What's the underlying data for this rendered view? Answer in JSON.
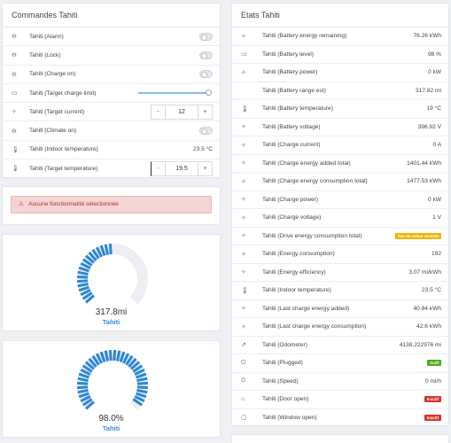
{
  "commands": {
    "title": "Commandes Tahiti",
    "rows": [
      {
        "icon": "toggle-icon",
        "label": "Tahiti (Alarm)",
        "type": "toggle"
      },
      {
        "icon": "toggle-icon",
        "label": "Tahiti (Lock)",
        "type": "toggle"
      },
      {
        "icon": "toggle-icon",
        "label": "Tahiti (Charge on)",
        "type": "toggle"
      },
      {
        "icon": "battery-icon",
        "label": "Tahiti (Target charge limit)",
        "type": "slider"
      },
      {
        "icon": "flash-icon",
        "label": "Tahiti (Target current)",
        "type": "stepper",
        "value": "12",
        "minus": "-",
        "plus": "+"
      },
      {
        "icon": "toggle-icon",
        "label": "Tahiti (Climate on)",
        "type": "toggle"
      },
      {
        "icon": "thermometer-icon",
        "label": "Tahiti (Indoor temperature)",
        "type": "value",
        "value": "23.5 °C"
      },
      {
        "icon": "thermometer-icon",
        "label": "Tahiti (Target temperature)",
        "type": "stepper",
        "value": "19.5",
        "minus": "-",
        "plus": "+"
      }
    ]
  },
  "alert": {
    "icon": "warning-icon",
    "text": "Aucune fonctionnalité sélectionnée"
  },
  "gauges": [
    {
      "value": "317.8mi",
      "name": "Tahiti",
      "fraction": 0.5
    },
    {
      "value": "98.0%",
      "name": "Tahiti",
      "fraction": 0.98
    }
  ],
  "states": {
    "title": "Etats Tahiti",
    "rows": [
      {
        "icon": "flash-icon",
        "label": "Tahiti (Battery energy remaining)",
        "value": "76.26 kWh"
      },
      {
        "icon": "battery-icon",
        "label": "Tahiti (Battery level)",
        "value": "98 %"
      },
      {
        "icon": "flash-icon",
        "label": "Tahiti (Battery power)",
        "value": "0 kW"
      },
      {
        "icon": "",
        "label": "Tahiti (Battery range est)",
        "value": "317.82 mi"
      },
      {
        "icon": "thermometer-icon",
        "label": "Tahiti (Battery temperature)",
        "value": "19 °C"
      },
      {
        "icon": "flash-icon",
        "label": "Tahiti (Battery voltage)",
        "value": "396.92 V"
      },
      {
        "icon": "flash-icon",
        "label": "Tahiti (Charge current)",
        "value": "0 A"
      },
      {
        "icon": "flash-icon",
        "label": "Tahiti (Charge energy added total)",
        "value": "1401.44 kWh"
      },
      {
        "icon": "flash-icon",
        "label": "Tahiti (Charge energy consumption total)",
        "value": "1477.53 kWh"
      },
      {
        "icon": "flash-icon",
        "label": "Tahiti (Charge power)",
        "value": "0 kW"
      },
      {
        "icon": "flash-icon",
        "label": "Tahiti (Charge voltage)",
        "value": "1 V"
      },
      {
        "icon": "flash-icon",
        "label": "Tahiti (Drive energy consumption total)",
        "badge": "Pas de valeur récente",
        "badge_color": "#f0b400"
      },
      {
        "icon": "flash-icon",
        "label": "Tahiti (Energy consumption)",
        "value": "192"
      },
      {
        "icon": "flash-icon",
        "label": "Tahiti (Energy efficiency)",
        "value": "3.07 mi/kWh"
      },
      {
        "icon": "thermometer-icon",
        "label": "Tahiti (Indoor temperature)",
        "value": "23.5 °C"
      },
      {
        "icon": "flash-icon",
        "label": "Tahiti (Last charge energy added)",
        "value": "40.84 kWh"
      },
      {
        "icon": "flash-icon",
        "label": "Tahiti (Last charge energy consumption)",
        "value": "42.6 kWh"
      },
      {
        "icon": "trend-icon",
        "label": "Tahiti (Odometer)",
        "value": "4138.222976 mi"
      },
      {
        "icon": "power-icon",
        "label": "Tahiti (Plugged)",
        "badge": "Actif",
        "badge_color": "#4cae1f"
      },
      {
        "icon": "speed-icon",
        "label": "Tahiti (Speed)",
        "value": "0 mi/h"
      },
      {
        "icon": "door-icon",
        "label": "Tahiti (Door open)",
        "badge": "Inactif",
        "badge_color": "#d4342a"
      },
      {
        "icon": "window-icon",
        "label": "Tahiti (Window open)",
        "badge": "Inactif",
        "badge_color": "#d4342a"
      }
    ]
  }
}
